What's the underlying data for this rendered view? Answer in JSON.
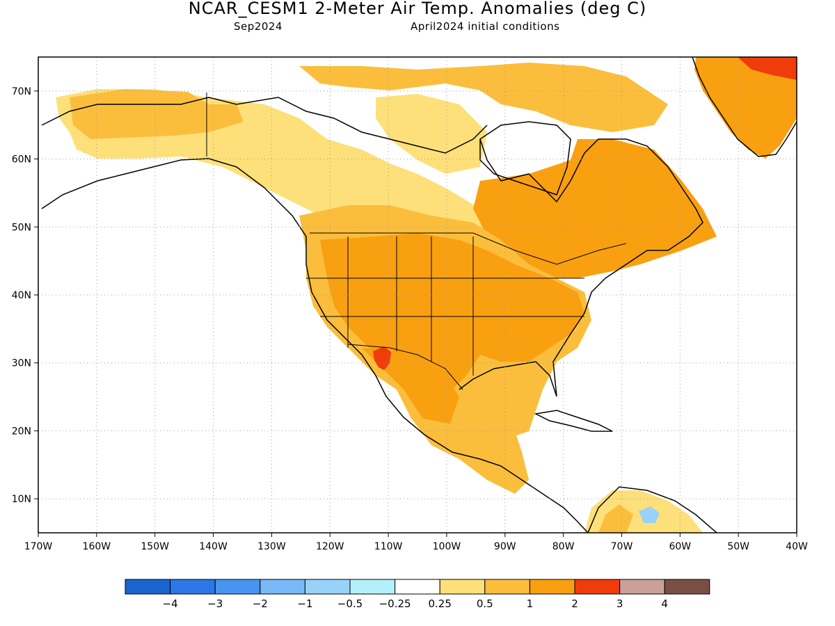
{
  "header": {
    "title": "NCAR_CESM1 2-Meter Air Temp. Anomalies (deg C)",
    "valid_month": "Sep2024",
    "initial_conditions": "April2024 initial conditions"
  },
  "map": {
    "lon_range": [
      -170,
      -40
    ],
    "lat_range": [
      5,
      75
    ],
    "grid": true,
    "y_ticks": [
      {
        "value": 70,
        "label": "70N"
      },
      {
        "value": 60,
        "label": "60N"
      },
      {
        "value": 50,
        "label": "50N"
      },
      {
        "value": 40,
        "label": "40N"
      },
      {
        "value": 30,
        "label": "30N"
      },
      {
        "value": 20,
        "label": "20N"
      },
      {
        "value": 10,
        "label": "10N"
      }
    ],
    "x_ticks": [
      {
        "value": -170,
        "label": "170W"
      },
      {
        "value": -160,
        "label": "160W"
      },
      {
        "value": -150,
        "label": "150W"
      },
      {
        "value": -140,
        "label": "140W"
      },
      {
        "value": -130,
        "label": "130W"
      },
      {
        "value": -120,
        "label": "120W"
      },
      {
        "value": -110,
        "label": "110W"
      },
      {
        "value": -100,
        "label": "100W"
      },
      {
        "value": -90,
        "label": "90W"
      },
      {
        "value": -80,
        "label": "80W"
      },
      {
        "value": -70,
        "label": "70W"
      },
      {
        "value": -60,
        "label": "60W"
      },
      {
        "value": -50,
        "label": "50W"
      },
      {
        "value": -40,
        "label": "40W"
      }
    ]
  },
  "colorbar": {
    "colors": [
      "#1a64d0",
      "#2b78e6",
      "#4696f0",
      "#78b9f8",
      "#98d2f9",
      "#b4f0fa",
      "#ffffff",
      "#fde07a",
      "#fbbe3c",
      "#f9a010",
      "#f03c0a",
      "#c9a09a",
      "#7a4f43"
    ],
    "labels": [
      "−4",
      "−3",
      "−2",
      "−1",
      "−0.5",
      "−0.25",
      "0.25",
      "0.5",
      "1",
      "2",
      "3",
      "4"
    ]
  },
  "anomaly_regions": [
    {
      "level": "0.25-0.5",
      "color": "#fde07a"
    },
    {
      "level": "0.5-1",
      "color": "#fbbe3c"
    },
    {
      "level": "1-2",
      "color": "#f9a010"
    },
    {
      "level": "2-3",
      "color": "#f03c0a"
    },
    {
      "level": "-1--0.5",
      "color": "#98d2f9"
    }
  ]
}
